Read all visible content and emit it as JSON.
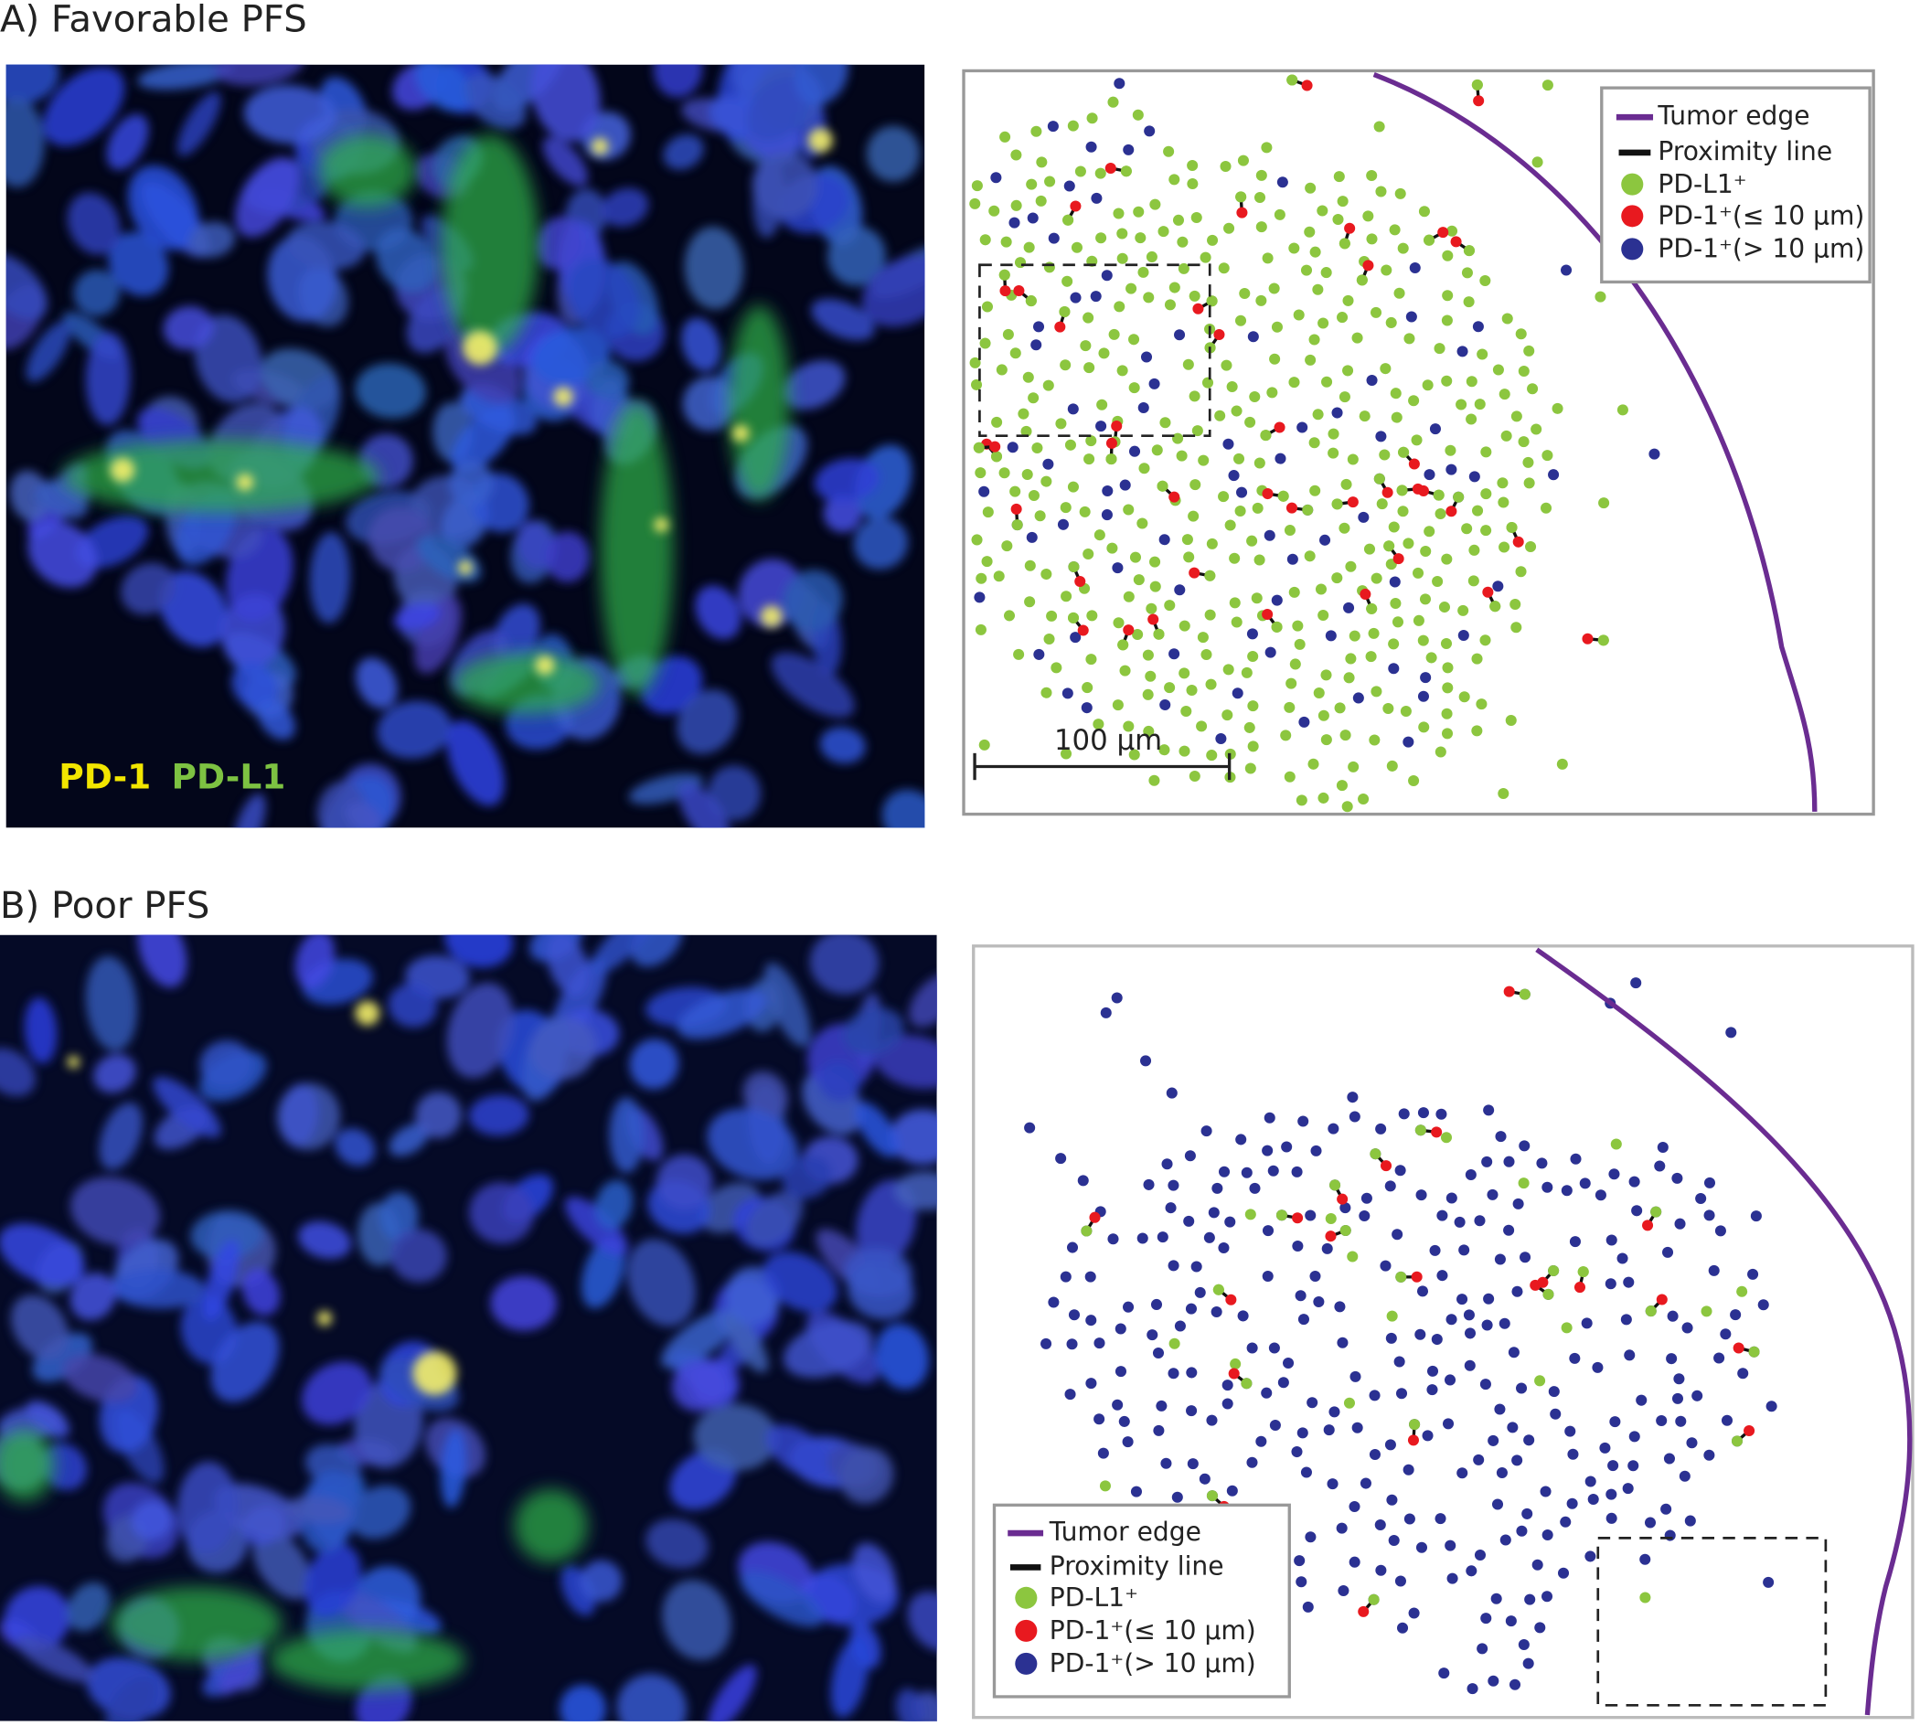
{
  "panels": [
    {
      "label": "A) Favorable PFS",
      "image_labels": [
        "PD-1",
        "PD-L1"
      ],
      "scale_bar": "100 µm",
      "legend": [
        "Tumor edge",
        "Proximity line",
        "PD-L1⁺",
        "PD-1⁺(≤ 10 µm)",
        "PD-1⁺(> 10 µm)"
      ]
    },
    {
      "label": "B) Poor PFS",
      "legend": [
        "Tumor edge",
        "Proximity line",
        "PD-L1⁺",
        "PD-1⁺(≤ 10 µm)",
        "PD-1⁺(> 10 µm)"
      ]
    }
  ]
}
